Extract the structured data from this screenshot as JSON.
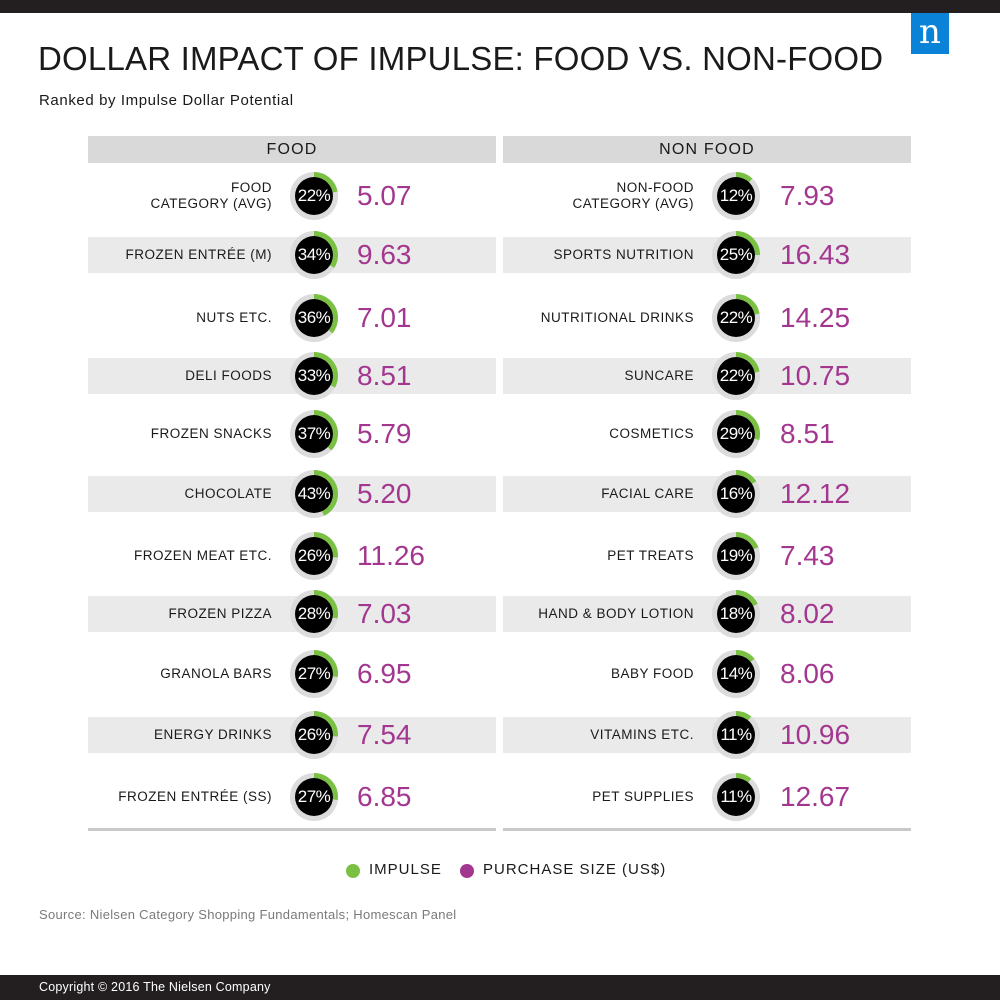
{
  "header": {
    "title": "DOLLAR IMPACT OF IMPULSE: FOOD VS. NON-FOOD",
    "subtitle": "Ranked by Impulse Dollar Potential",
    "logo_letter": "n"
  },
  "colors": {
    "impulse": "#7ac143",
    "purchase_size": "#a3378f",
    "ring_track": "#dcdcdc",
    "ring_fill": "#000000",
    "logo_bg": "#0a82d8"
  },
  "chart_data": {
    "type": "table",
    "title": "DOLLAR IMPACT OF IMPULSE: FOOD VS. NON-FOOD",
    "legend": [
      {
        "name": "IMPULSE",
        "color": "#7ac143"
      },
      {
        "name": "PURCHASE SIZE (US$)",
        "color": "#a3378f"
      }
    ],
    "legend_position": "bottom",
    "columns": [
      {
        "header": "FOOD",
        "rows": [
          {
            "label": "FOOD\nCATEGORY (AVG)",
            "impulse": 22,
            "purchase_size": "5.07"
          },
          {
            "label": "FROZEN ENTRÉE (M)",
            "impulse": 34,
            "purchase_size": "9.63"
          },
          {
            "label": "NUTS ETC.",
            "impulse": 36,
            "purchase_size": "7.01"
          },
          {
            "label": "DELI FOODS",
            "impulse": 33,
            "purchase_size": "8.51"
          },
          {
            "label": "FROZEN SNACKS",
            "impulse": 37,
            "purchase_size": "5.79"
          },
          {
            "label": "CHOCOLATE",
            "impulse": 43,
            "purchase_size": "5.20"
          },
          {
            "label": "FROZEN MEAT ETC.",
            "impulse": 26,
            "purchase_size": "11.26"
          },
          {
            "label": "FROZEN PIZZA",
            "impulse": 28,
            "purchase_size": "7.03"
          },
          {
            "label": "GRANOLA BARS",
            "impulse": 27,
            "purchase_size": "6.95"
          },
          {
            "label": "ENERGY DRINKS",
            "impulse": 26,
            "purchase_size": "7.54"
          },
          {
            "label": "FROZEN ENTRÉE (SS)",
            "impulse": 27,
            "purchase_size": "6.85"
          }
        ]
      },
      {
        "header": "NON FOOD",
        "rows": [
          {
            "label": "NON-FOOD\nCATEGORY (AVG)",
            "impulse": 12,
            "purchase_size": "7.93"
          },
          {
            "label": "SPORTS NUTRITION",
            "impulse": 25,
            "purchase_size": "16.43"
          },
          {
            "label": "NUTRITIONAL DRINKS",
            "impulse": 22,
            "purchase_size": "14.25"
          },
          {
            "label": "SUNCARE",
            "impulse": 22,
            "purchase_size": "10.75"
          },
          {
            "label": "COSMETICS",
            "impulse": 29,
            "purchase_size": "8.51"
          },
          {
            "label": "FACIAL CARE",
            "impulse": 16,
            "purchase_size": "12.12"
          },
          {
            "label": "PET TREATS",
            "impulse": 19,
            "purchase_size": "7.43"
          },
          {
            "label": "HAND & BODY LOTION",
            "impulse": 18,
            "purchase_size": "8.02"
          },
          {
            "label": "BABY FOOD",
            "impulse": 14,
            "purchase_size": "8.06"
          },
          {
            "label": "VITAMINS ETC.",
            "impulse": 11,
            "purchase_size": "10.96"
          },
          {
            "label": "PET SUPPLIES",
            "impulse": 11,
            "purchase_size": "12.67"
          }
        ]
      }
    ]
  },
  "source": "Source: Nielsen Category Shopping Fundamentals; Homescan Panel",
  "footer": {
    "copyright": "Copyright © 2016 The Nielsen Company"
  }
}
